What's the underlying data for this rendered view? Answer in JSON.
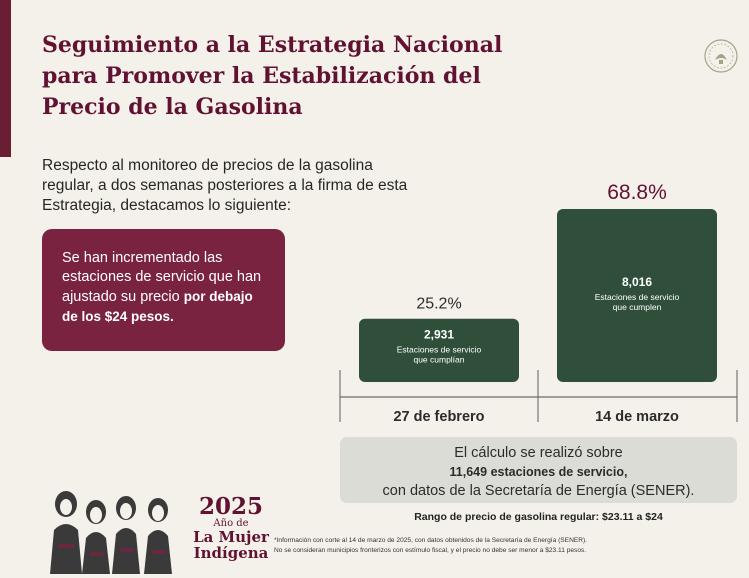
{
  "header": {
    "title": "Seguimiento a la Estrategia Nacional para Promover la Estabilización del Precio de la Gasolina"
  },
  "intro": {
    "text": "Respecto al monitoreo de precios de la gasolina regular, a dos semanas posteriores a la firma de esta Estrategia, destacamos lo siguiente:"
  },
  "highlight": {
    "text_regular": "Se han incrementado las estaciones de servicio que han ajustado su precio",
    "text_bold": "por debajo de los $24 pesos."
  },
  "chart_data": {
    "type": "bar",
    "categories": [
      "27 de febrero",
      "14 de marzo"
    ],
    "values": [
      2931,
      8016
    ],
    "value_labels": [
      "2,931",
      "8,016"
    ],
    "percent_labels": [
      "25.2%",
      "68.8%"
    ],
    "bar_descriptions": [
      "Estaciones de servicio que cumplían",
      "Estaciones de servicio que cumplen"
    ],
    "percent_values": [
      25.2,
      68.8
    ],
    "total": 11649,
    "ylim": [
      0,
      8016
    ],
    "grid": false,
    "colors": {
      "bar": "#2f4f3a",
      "percent": "#611232",
      "axis": "#6b6b6b"
    }
  },
  "note": {
    "line1": "El cálculo se realizó sobre",
    "line2": "11,649 estaciones de servicio,",
    "line3": "con datos de la Secretaría de Energía (SENER)."
  },
  "range": {
    "text": "Rango de precio de gasolina regular: $23.11 a $24"
  },
  "footnote": {
    "line1": "*Información con corte al 14 de marzo de 2025, con datos obtenidos de la Secretaría de Energía (SENER).",
    "line2": "No se consideran municipios fronterizos con estímulo fiscal, y el precio no debe ser menor a $23.11 pesos."
  },
  "logo": {
    "year": "2025",
    "line1": "Año de",
    "line2": "La Mujer",
    "line3": "Indígena"
  },
  "colors": {
    "brand": "#611232",
    "box": "#7a2340",
    "bars": "#2f4f3a",
    "background": "#f4f1ea"
  },
  "icons": {
    "seal": "national-seal-icon",
    "illustration": "indigenous-women-illustration"
  }
}
